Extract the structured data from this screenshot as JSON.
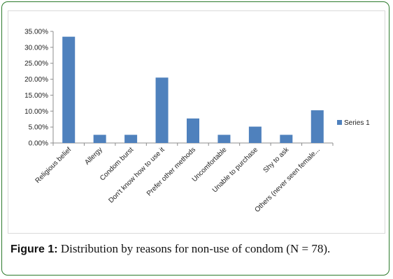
{
  "chart_data": {
    "type": "bar",
    "categories": [
      "Religious belief",
      "Allergy",
      "Condom burst",
      "Don't know how to use it",
      "Prefer other methods",
      "Uncomfortable",
      "Unable to purchase",
      "Shy to ask",
      "Others (never seen female..."
    ],
    "series": [
      {
        "name": "Series 1",
        "values": [
          0.3333,
          0.0256,
          0.0256,
          0.2051,
          0.0769,
          0.0256,
          0.0513,
          0.0256,
          0.1026
        ],
        "color": "#4f81bd"
      }
    ],
    "yticks": [
      "0.00%",
      "5.00%",
      "10.00%",
      "15.00%",
      "20.00%",
      "25.00%",
      "30.00%",
      "35.00%"
    ],
    "ylim": [
      0,
      0.35
    ],
    "grid": false,
    "legend": "right",
    "xlabel": "",
    "ylabel": ""
  },
  "caption": {
    "label": "Figure 1:",
    "text": " Distribution by reasons for non-use of condom (N = 78)."
  }
}
